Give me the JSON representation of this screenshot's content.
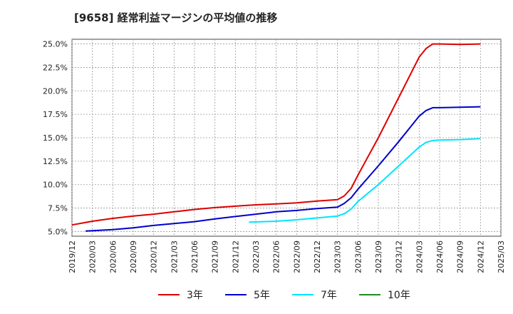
{
  "title": "[9658]  経常利益マージンの平均値の推移",
  "chart_data": {
    "type": "line",
    "title": "[9658]  経常利益マージンの平均値の推移",
    "xlabel": "",
    "ylabel": "",
    "x_ticks": [
      "2019/12",
      "2020/03",
      "2020/06",
      "2020/09",
      "2020/12",
      "2021/03",
      "2021/06",
      "2021/09",
      "2021/12",
      "2022/03",
      "2022/06",
      "2022/09",
      "2022/12",
      "2023/03",
      "2023/06",
      "2023/09",
      "2023/12",
      "2024/03",
      "2024/06",
      "2024/09",
      "2024/12",
      "2025/03"
    ],
    "y_ticks": [
      "5.0%",
      "7.5%",
      "10.0%",
      "12.5%",
      "15.0%",
      "17.5%",
      "20.0%",
      "22.5%",
      "25.0%"
    ],
    "ylim": [
      4.5,
      25.5
    ],
    "grid": true,
    "legend_position": "bottom",
    "series": [
      {
        "name": "3年",
        "color": "#dd0000",
        "points": [
          [
            "2019/12",
            5.7
          ],
          [
            "2020/03",
            6.1
          ],
          [
            "2020/06",
            6.4
          ],
          [
            "2020/09",
            6.65
          ],
          [
            "2020/12",
            6.85
          ],
          [
            "2021/03",
            7.1
          ],
          [
            "2021/06",
            7.35
          ],
          [
            "2021/09",
            7.55
          ],
          [
            "2021/12",
            7.7
          ],
          [
            "2022/03",
            7.85
          ],
          [
            "2022/06",
            7.95
          ],
          [
            "2022/09",
            8.05
          ],
          [
            "2022/12",
            8.25
          ],
          [
            "2023/03",
            8.4
          ],
          [
            "2023/04",
            8.8
          ],
          [
            "2023/05",
            9.6
          ],
          [
            "2023/06",
            11.0
          ],
          [
            "2023/09",
            15.0
          ],
          [
            "2023/12",
            19.3
          ],
          [
            "2024/03",
            23.6
          ],
          [
            "2024/04",
            24.5
          ],
          [
            "2024/05",
            25.0
          ],
          [
            "2024/06",
            25.0
          ],
          [
            "2024/09",
            24.95
          ],
          [
            "2024/12",
            25.0
          ]
        ]
      },
      {
        "name": "5年",
        "color": "#0000cc",
        "points": [
          [
            "2020/02",
            5.05
          ],
          [
            "2020/06",
            5.2
          ],
          [
            "2020/09",
            5.4
          ],
          [
            "2020/12",
            5.65
          ],
          [
            "2021/03",
            5.85
          ],
          [
            "2021/06",
            6.05
          ],
          [
            "2021/09",
            6.35
          ],
          [
            "2021/12",
            6.6
          ],
          [
            "2022/03",
            6.85
          ],
          [
            "2022/06",
            7.1
          ],
          [
            "2022/09",
            7.25
          ],
          [
            "2022/12",
            7.45
          ],
          [
            "2023/03",
            7.6
          ],
          [
            "2023/04",
            8.0
          ],
          [
            "2023/05",
            8.6
          ],
          [
            "2023/06",
            9.5
          ],
          [
            "2023/09",
            12.0
          ],
          [
            "2023/12",
            14.6
          ],
          [
            "2024/03",
            17.3
          ],
          [
            "2024/04",
            17.9
          ],
          [
            "2024/05",
            18.2
          ],
          [
            "2024/06",
            18.2
          ],
          [
            "2024/09",
            18.25
          ],
          [
            "2024/12",
            18.3
          ]
        ]
      },
      {
        "name": "7年",
        "color": "#00e5ff",
        "points": [
          [
            "2022/02",
            6.0
          ],
          [
            "2022/06",
            6.1
          ],
          [
            "2022/09",
            6.25
          ],
          [
            "2022/12",
            6.45
          ],
          [
            "2023/03",
            6.65
          ],
          [
            "2023/04",
            6.9
          ],
          [
            "2023/05",
            7.4
          ],
          [
            "2023/06",
            8.2
          ],
          [
            "2023/09",
            10.0
          ],
          [
            "2023/12",
            12.0
          ],
          [
            "2024/03",
            14.0
          ],
          [
            "2024/04",
            14.5
          ],
          [
            "2024/05",
            14.7
          ],
          [
            "2024/06",
            14.75
          ],
          [
            "2024/09",
            14.8
          ],
          [
            "2024/12",
            14.9
          ]
        ]
      },
      {
        "name": "10年",
        "color": "#228b22",
        "points": []
      }
    ]
  }
}
